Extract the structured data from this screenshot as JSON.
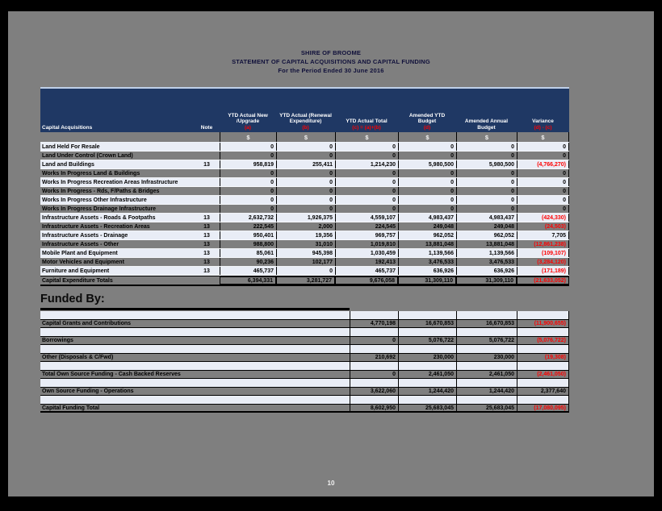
{
  "page": {
    "title_lines": [
      "SHIRE OF BROOME",
      "STATEMENT OF CAPITAL ACQUISITIONS AND CAPITAL FUNDING",
      "For the Period Ended 30 June 2016"
    ],
    "page_number": "10"
  },
  "colors": {
    "header_bg": "#1F3864",
    "page_bg": "#7F7F7F",
    "row_light": "#E9EDF6",
    "row_grey": "#7F7F7F",
    "negative": "#FF0000",
    "header_text": "#FFFFFF"
  },
  "table": {
    "currency_symbol": "$",
    "columns": [
      {
        "id": "desc",
        "lines": [
          "Capital Acquisitions"
        ]
      },
      {
        "id": "note",
        "lines": [
          "Note"
        ]
      },
      {
        "id": "a",
        "lines": [
          "YTD Actual New",
          "/Upgrade",
          "(a)"
        ]
      },
      {
        "id": "b",
        "lines": [
          "YTD Actual (Renewal",
          "Expenditure)",
          "(b)"
        ]
      },
      {
        "id": "c",
        "lines": [
          "YTD Actual Total",
          "(c) = (a)+(b)"
        ]
      },
      {
        "id": "d",
        "lines": [
          "Amended YTD",
          "Budget",
          "(d)"
        ]
      },
      {
        "id": "e",
        "lines": [
          "Amended Annual",
          "Budget"
        ]
      },
      {
        "id": "f",
        "lines": [
          "Variance",
          "(d) - (c)"
        ]
      }
    ],
    "rows": [
      {
        "label": "Land Held For Resale",
        "note": "",
        "shade": "light",
        "values": [
          "0",
          "0",
          "0",
          "0",
          "0",
          "0"
        ]
      },
      {
        "label": "Land Under Control (Crown Land)",
        "note": "",
        "shade": "grey",
        "values": [
          "0",
          "0",
          "0",
          "0",
          "0",
          "0"
        ]
      },
      {
        "label": "Land and Buildings",
        "note": "13",
        "shade": "light",
        "values": [
          "958,819",
          "255,411",
          "1,214,230",
          "5,980,500",
          "5,980,500",
          "(4,766,270)"
        ]
      },
      {
        "label": "Works In Progress Land & Buildings",
        "note": "",
        "shade": "grey",
        "values": [
          "0",
          "0",
          "0",
          "0",
          "0",
          "0"
        ]
      },
      {
        "label": "Works In Progress Recreation Areas Infrastructure",
        "note": "",
        "shade": "light",
        "values": [
          "0",
          "0",
          "0",
          "0",
          "0",
          "0"
        ]
      },
      {
        "label": "Works In Progress - Rds, F/Paths & Bridges",
        "note": "",
        "shade": "grey",
        "values": [
          "0",
          "0",
          "0",
          "0",
          "0",
          "0"
        ]
      },
      {
        "label": "Works In Progress Other Infrastructure",
        "note": "",
        "shade": "light",
        "values": [
          "0",
          "0",
          "0",
          "0",
          "0",
          "0"
        ]
      },
      {
        "label": "Works In Progress Drainage Infrastructure",
        "note": "",
        "shade": "grey",
        "values": [
          "0",
          "0",
          "0",
          "0",
          "0",
          "0"
        ]
      },
      {
        "label": "Infrastructure Assets - Roads & Footpaths",
        "note": "13",
        "shade": "light",
        "values": [
          "2,632,732",
          "1,926,375",
          "4,559,107",
          "4,983,437",
          "4,983,437",
          "(424,330)"
        ]
      },
      {
        "label": "Infrastructure Assets - Recreation Areas",
        "note": "13",
        "shade": "grey",
        "values": [
          "222,545",
          "2,000",
          "224,545",
          "249,048",
          "249,048",
          "(24,503)"
        ]
      },
      {
        "label": "Infrastructure Assets - Drainage",
        "note": "13",
        "shade": "light",
        "values": [
          "950,401",
          "19,356",
          "969,757",
          "962,052",
          "962,052",
          "7,705"
        ]
      },
      {
        "label": "Infrastructure Assets - Other",
        "note": "13",
        "shade": "grey",
        "values": [
          "988,800",
          "31,010",
          "1,019,810",
          "13,881,048",
          "13,881,048",
          "(12,861,238)"
        ]
      },
      {
        "label": "Mobile Plant and Equipment",
        "note": "13",
        "shade": "light",
        "values": [
          "85,061",
          "945,398",
          "1,030,459",
          "1,139,566",
          "1,139,566",
          "(109,107)"
        ]
      },
      {
        "label": "Motor Vehicles and Equipment",
        "note": "13",
        "shade": "grey",
        "values": [
          "90,236",
          "102,177",
          "192,413",
          "3,476,533",
          "3,476,533",
          "(3,284,120)"
        ]
      },
      {
        "label": "Furniture and Equipment",
        "note": "13",
        "shade": "light",
        "values": [
          "465,737",
          "0",
          "465,737",
          "636,926",
          "636,926",
          "(171,189)"
        ]
      }
    ],
    "total_row": {
      "label": "Capital Expenditure Totals",
      "note": "",
      "values": [
        "6,394,331",
        "3,281,727",
        "9,676,058",
        "31,309,110",
        "31,309,110",
        "(21,633,052)"
      ]
    }
  },
  "funded_by": {
    "heading": "Funded By:",
    "rows": [
      {
        "label": "Capital Grants and Contributions",
        "values": [
          "4,770,198",
          "16,670,853",
          "16,670,853",
          "(11,900,655)"
        ]
      },
      {
        "label": "Borrowings",
        "values": [
          "0",
          "5,076,722",
          "5,076,722",
          "(5,076,722)"
        ]
      },
      {
        "label": "Other (Disposals & C/Fwd)",
        "values": [
          "210,692",
          "230,000",
          "230,000",
          "(19,308)"
        ]
      },
      {
        "label": "Total Own Source Funding - Cash Backed Reserves",
        "values": [
          "0",
          "2,461,050",
          "2,461,050",
          "(2,461,050)"
        ]
      },
      {
        "label": "Own Source Funding - Operations",
        "values": [
          "3,622,060",
          "1,244,420",
          "1,244,420",
          "2,377,640"
        ]
      }
    ],
    "total_row": {
      "label": "Capital Funding Total",
      "values": [
        "8,602,950",
        "25,683,045",
        "25,683,045",
        "(17,080,095)"
      ]
    }
  }
}
